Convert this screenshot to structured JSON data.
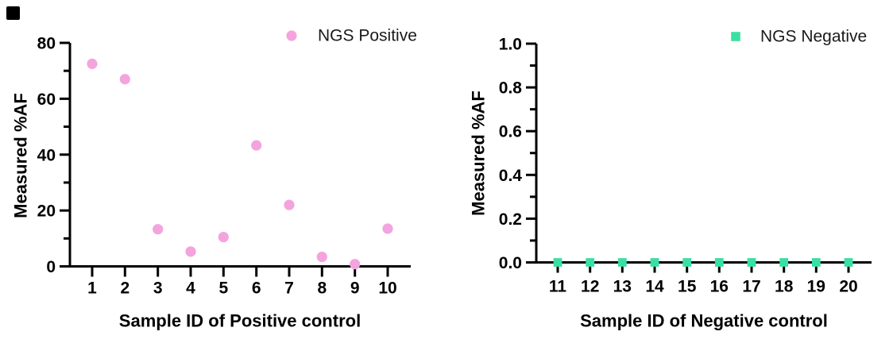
{
  "figure": {
    "background": "#FFFFFF",
    "corner_artifact": {
      "present": true,
      "color": "#000000"
    }
  },
  "chart_data": [
    {
      "type": "scatter",
      "title": "",
      "xlabel": "Sample ID of Positive control",
      "ylabel": "Measured %AF",
      "ylim": [
        0,
        80
      ],
      "yticks": [
        0,
        20,
        40,
        60,
        80
      ],
      "ytick_labels": [
        "0",
        "20",
        "40",
        "60",
        "80"
      ],
      "yminor_ticks": [
        10,
        30,
        50,
        70
      ],
      "xtick_labels": [
        "1",
        "2",
        "3",
        "4",
        "5",
        "6",
        "7",
        "8",
        "9",
        "10"
      ],
      "grid": false,
      "legend_position": "top-right",
      "series": [
        {
          "name": "NGS Positive",
          "marker": "circle",
          "color": "#F3A4DE",
          "x": [
            1,
            2,
            3,
            4,
            5,
            6,
            7,
            8,
            9,
            10
          ],
          "y": [
            72.5,
            67.0,
            13.3,
            5.3,
            10.5,
            43.3,
            22.0,
            3.4,
            0.8,
            13.5
          ]
        }
      ]
    },
    {
      "type": "scatter",
      "title": "",
      "xlabel": "Sample ID of Negative control",
      "ylabel": "Measured %AF",
      "ylim": [
        0,
        1.0
      ],
      "yticks": [
        0.0,
        0.2,
        0.4,
        0.6,
        0.8,
        1.0
      ],
      "ytick_labels": [
        "0.0",
        "0.2",
        "0.4",
        "0.6",
        "0.8",
        "1.0"
      ],
      "yminor_ticks": [
        0.1,
        0.3,
        0.5,
        0.7,
        0.9
      ],
      "xtick_labels": [
        "11",
        "12",
        "13",
        "14",
        "15",
        "16",
        "17",
        "18",
        "19",
        "20"
      ],
      "grid": false,
      "legend_position": "top-right",
      "series": [
        {
          "name": "NGS Negative",
          "marker": "square",
          "color": "#3CDFA3",
          "x": [
            11,
            12,
            13,
            14,
            15,
            16,
            17,
            18,
            19,
            20
          ],
          "y": [
            0,
            0,
            0,
            0,
            0,
            0,
            0,
            0,
            0,
            0
          ]
        }
      ]
    }
  ]
}
